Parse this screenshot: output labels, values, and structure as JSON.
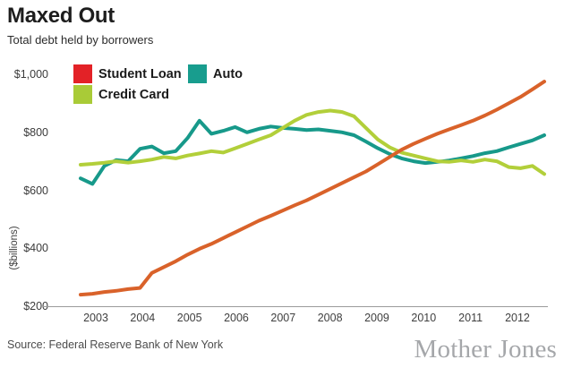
{
  "header": {
    "title": "Maxed Out",
    "subtitle": "Total debt held by borrowers"
  },
  "legend": {
    "items": [
      {
        "label": "Student Loan",
        "swatch_color": "#e32227"
      },
      {
        "label": "Auto",
        "swatch_color": "#189d8e"
      },
      {
        "label": "Credit Card",
        "swatch_color": "#a9cb37"
      }
    ]
  },
  "chart_data": {
    "type": "line",
    "title": "Maxed Out",
    "subtitle": "Total debt held by borrowers",
    "ylabel": "($billions)",
    "ylim": [
      200,
      1000
    ],
    "grid": false,
    "legend_position": "top-left",
    "axis_line_color": "#9b9b9b",
    "y_ticks": [
      {
        "label": "$1,000",
        "value": 1000
      },
      {
        "label": "$800",
        "value": 800
      },
      {
        "label": "$600",
        "value": 600
      },
      {
        "label": "$400",
        "value": 400
      },
      {
        "label": "$200",
        "value": 200
      }
    ],
    "x_tick_labels": [
      "2003",
      "2004",
      "2005",
      "2006",
      "2007",
      "2008",
      "2009",
      "2010",
      "2011",
      "2012"
    ],
    "x_quarters": [
      "2003Q1",
      "2003Q2",
      "2003Q3",
      "2003Q4",
      "2004Q1",
      "2004Q2",
      "2004Q3",
      "2004Q4",
      "2005Q1",
      "2005Q2",
      "2005Q3",
      "2005Q4",
      "2006Q1",
      "2006Q2",
      "2006Q3",
      "2006Q4",
      "2007Q1",
      "2007Q2",
      "2007Q3",
      "2007Q4",
      "2008Q1",
      "2008Q2",
      "2008Q3",
      "2008Q4",
      "2009Q1",
      "2009Q2",
      "2009Q3",
      "2009Q4",
      "2010Q1",
      "2010Q2",
      "2010Q3",
      "2010Q4",
      "2011Q1",
      "2011Q2",
      "2011Q3",
      "2011Q4",
      "2012Q1",
      "2012Q2",
      "2012Q3",
      "2012Q4"
    ],
    "series": [
      {
        "name": "Student Loan",
        "color": "#d9622a",
        "values": [
          240,
          243,
          249,
          253,
          259,
          263,
          315,
          335,
          355,
          378,
          398,
          415,
          435,
          455,
          475,
          495,
          512,
          530,
          548,
          565,
          585,
          605,
          625,
          645,
          665,
          690,
          715,
          740,
          760,
          778,
          795,
          810,
          825,
          840,
          858,
          878,
          900,
          922,
          948,
          975
        ]
      },
      {
        "name": "Auto",
        "color": "#17998a",
        "values": [
          641,
          622,
          684,
          704,
          700,
          743,
          751,
          728,
          735,
          780,
          840,
          795,
          805,
          818,
          800,
          812,
          820,
          815,
          812,
          808,
          810,
          805,
          800,
          790,
          768,
          745,
          725,
          710,
          700,
          694,
          698,
          703,
          710,
          718,
          728,
          735,
          748,
          760,
          772,
          790
        ]
      },
      {
        "name": "Credit Card",
        "color": "#b2cf3a",
        "values": [
          688,
          691,
          695,
          700,
          695,
          700,
          706,
          715,
          710,
          720,
          727,
          735,
          730,
          745,
          760,
          775,
          790,
          815,
          840,
          860,
          870,
          875,
          870,
          855,
          815,
          775,
          748,
          730,
          720,
          710,
          700,
          698,
          703,
          698,
          706,
          700,
          680,
          676,
          684,
          656
        ]
      }
    ]
  },
  "footer": {
    "source": "Source: Federal Reserve Bank of New York",
    "brand": "Mother Jones"
  }
}
